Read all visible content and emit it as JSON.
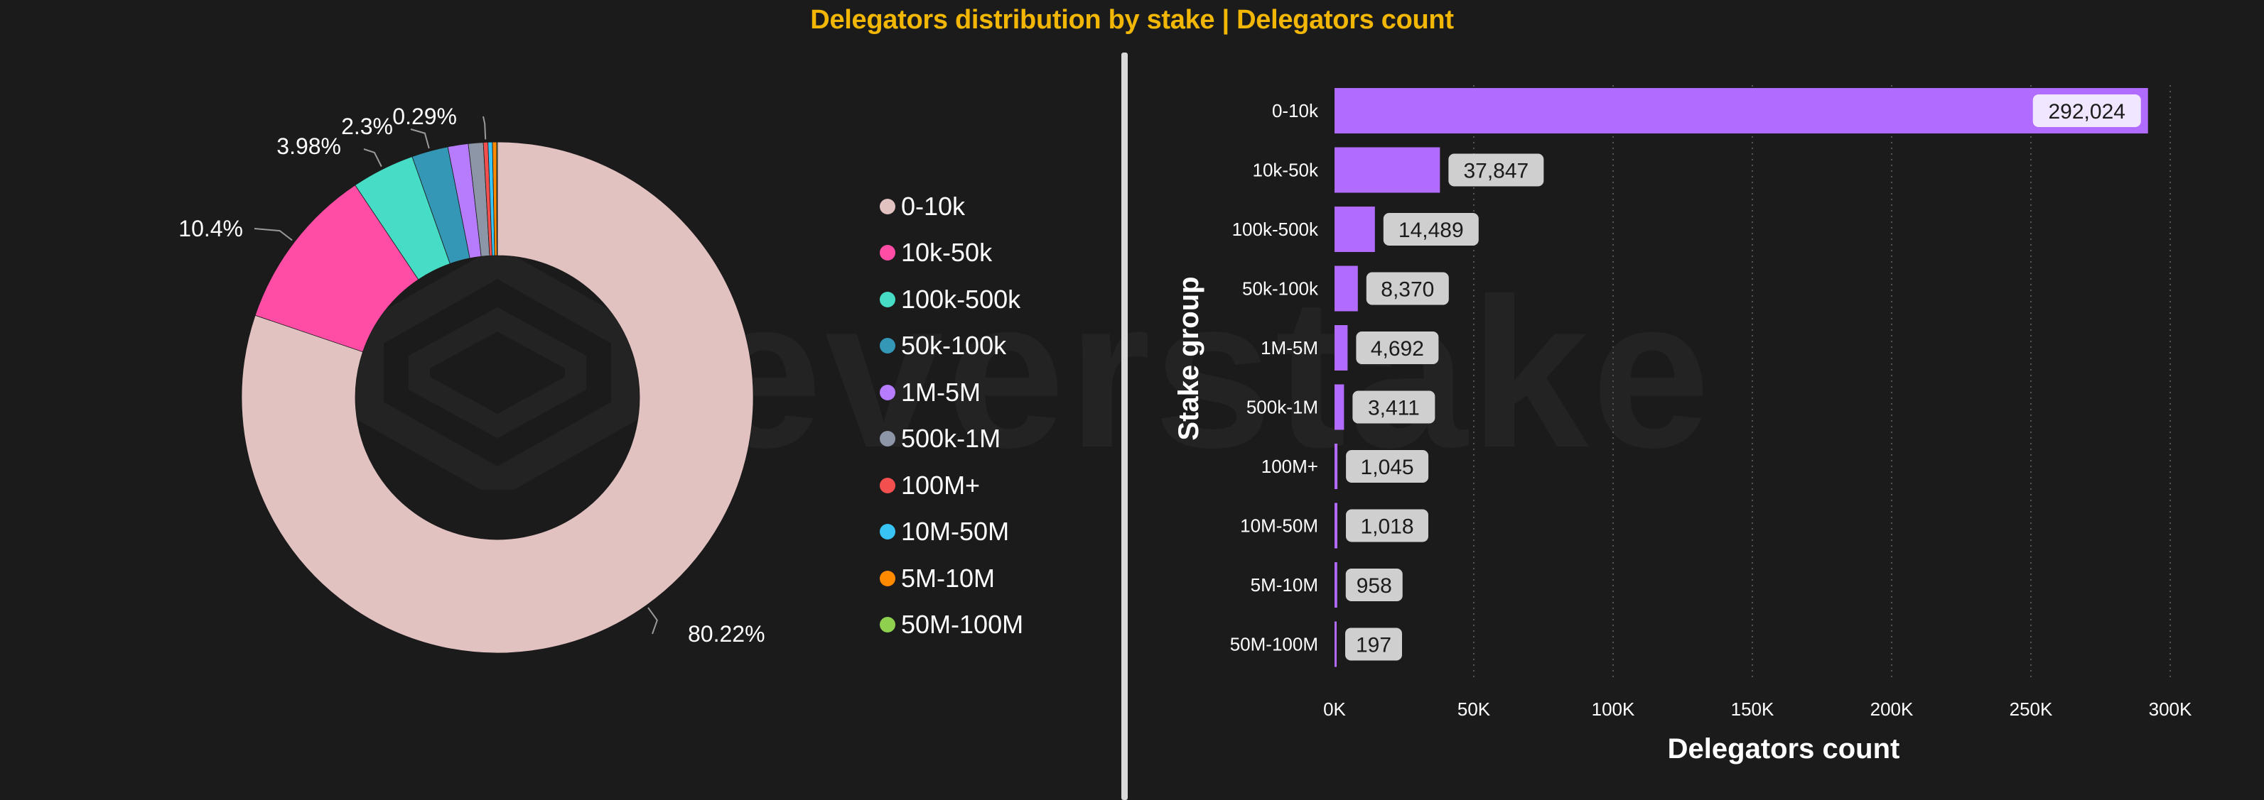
{
  "title": "Delegators distribution by stake | Delegators count",
  "watermark": {
    "text": "everstake"
  },
  "chart_data": [
    {
      "type": "pie",
      "variant": "donut",
      "legend_position": "right",
      "slices": [
        {
          "label": "0-10k",
          "value": 80.22,
          "data_label": "80.22%",
          "color": "#e2c1c1"
        },
        {
          "label": "10k-50k",
          "value": 10.4,
          "data_label": "10.4%",
          "color": "#ff4da6"
        },
        {
          "label": "100k-500k",
          "value": 3.98,
          "data_label": "3.98%",
          "color": "#47dcc6"
        },
        {
          "label": "50k-100k",
          "value": 2.3,
          "data_label": "2.3%",
          "color": "#3497b6"
        },
        {
          "label": "1M-5M",
          "value": 1.29,
          "data_label": "",
          "color": "#b67cfd"
        },
        {
          "label": "500k-1M",
          "value": 0.94,
          "data_label": "",
          "color": "#8c96a6"
        },
        {
          "label": "100M+",
          "value": 0.29,
          "data_label": "0.29%",
          "color": "#f44f4f"
        },
        {
          "label": "10M-50M",
          "value": 0.28,
          "data_label": "",
          "color": "#38c4f4"
        },
        {
          "label": "5M-10M",
          "value": 0.26,
          "data_label": "",
          "color": "#ff8a00"
        },
        {
          "label": "50M-100M",
          "value": 0.05,
          "data_label": "",
          "color": "#8fd14f"
        }
      ]
    },
    {
      "type": "bar",
      "orientation": "horizontal",
      "categories": [
        "0-10k",
        "10k-50k",
        "100k-500k",
        "50k-100k",
        "1M-5M",
        "500k-1M",
        "100M+",
        "10M-50M",
        "5M-10M",
        "50M-100M"
      ],
      "values": [
        292024,
        37847,
        14489,
        8370,
        4692,
        3411,
        1045,
        1018,
        958,
        197
      ],
      "data_labels": [
        "292,024",
        "37,847",
        "14,489",
        "8,370",
        "4,692",
        "3,411",
        "1,045",
        "1,018",
        "958",
        "197"
      ],
      "bar_color": "#b16cff",
      "xlabel": "Delegators count",
      "ylabel": "Stake group",
      "xlim": [
        0,
        300000
      ],
      "x_ticks": [
        0,
        50000,
        100000,
        150000,
        200000,
        250000,
        300000
      ],
      "x_tick_labels": [
        "0K",
        "50K",
        "100K",
        "150K",
        "200K",
        "250K",
        "300K"
      ],
      "grid": "vertical-dotted"
    }
  ]
}
